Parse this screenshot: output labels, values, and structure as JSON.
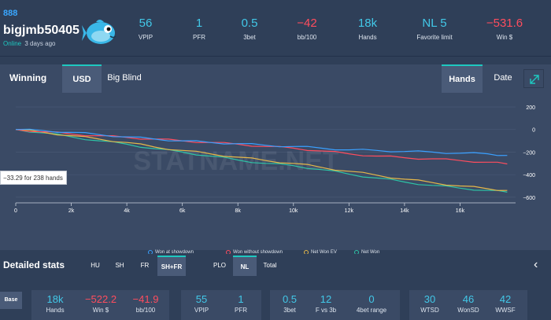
{
  "player": {
    "site": "888",
    "name": "bigjmb50405",
    "status": "Online",
    "last_seen": "3 days ago"
  },
  "header_stats": [
    {
      "value": "56",
      "label": "VPIP"
    },
    {
      "value": "1",
      "label": "PFR"
    },
    {
      "value": "0.5",
      "label": "3bet"
    },
    {
      "value": "−42",
      "label": "bb/100",
      "negative": true
    },
    {
      "value": "18k",
      "label": "Hands"
    },
    {
      "value": "NL 5",
      "label": "Favorite limit"
    },
    {
      "value": "−531.6",
      "label": "Win $",
      "negative": true
    }
  ],
  "chart_toolbar": {
    "title": "Winning",
    "tab_usd": "USD",
    "tab_bb": "Big Blind",
    "tab_hands": "Hands",
    "tab_date": "Date"
  },
  "chart_data": {
    "type": "line",
    "watermark": "STATNAME.NET",
    "tooltip": "−33.29 for 238 hands",
    "x_ticks": [
      "0",
      "2k",
      "4k",
      "6k",
      "8k",
      "10k",
      "12k",
      "14k",
      "16k"
    ],
    "y_ticks": [
      "200",
      "0",
      "−200",
      "−400",
      "−600"
    ],
    "xlim": [
      0,
      18000
    ],
    "ylim": [
      -650,
      270
    ],
    "x": [
      0,
      1000,
      2000,
      3000,
      4000,
      5000,
      6000,
      7000,
      8000,
      9000,
      10000,
      11000,
      12000,
      13000,
      14000,
      15000,
      16000,
      17000,
      17700
    ],
    "series": [
      {
        "name": "Won at showdown",
        "color": "#3aa0ff",
        "values": [
          0,
          -10,
          -25,
          -45,
          -65,
          -85,
          -100,
          -115,
          -125,
          -140,
          -150,
          -165,
          -180,
          -185,
          -195,
          -200,
          -210,
          -215,
          -230
        ]
      },
      {
        "name": "Won without showdown",
        "color": "#ff4d5e",
        "values": [
          0,
          -20,
          -40,
          -55,
          -70,
          -85,
          -100,
          -115,
          -130,
          -150,
          -165,
          -190,
          -215,
          -235,
          -250,
          -260,
          -275,
          -290,
          -305
        ]
      },
      {
        "name": "Net Won EV",
        "color": "#e6b84a",
        "values": [
          0,
          -25,
          -55,
          -85,
          -115,
          -155,
          -185,
          -215,
          -245,
          -275,
          -300,
          -335,
          -370,
          -405,
          -440,
          -470,
          -500,
          -525,
          -540
        ]
      },
      {
        "name": "Net Won",
        "color": "#2ec4a6",
        "values": [
          0,
          -30,
          -65,
          -100,
          -130,
          -170,
          -200,
          -235,
          -270,
          -300,
          -320,
          -355,
          -395,
          -430,
          -465,
          -495,
          -520,
          -540,
          -555
        ]
      }
    ]
  },
  "detailed_stats": {
    "title": "Detailed stats",
    "tabs": [
      "HU",
      "SH",
      "FR",
      "SH+FR",
      "PLO",
      "NL",
      "Total"
    ],
    "active_tabs": [
      "SH+FR",
      "NL"
    ],
    "row_label": "Base",
    "groups": [
      [
        {
          "value": "18k",
          "label": "Hands"
        },
        {
          "value": "−522.2",
          "label": "Win $",
          "negative": true
        },
        {
          "value": "−41.9",
          "label": "bb/100",
          "negative": true
        }
      ],
      [
        {
          "value": "55",
          "label": "VPIP"
        },
        {
          "value": "1",
          "label": "PFR"
        }
      ],
      [
        {
          "value": "0.5",
          "label": "3bet"
        },
        {
          "value": "12",
          "label": "F vs 3b"
        },
        {
          "value": "0",
          "label": "4bet range"
        }
      ],
      [
        {
          "value": "30",
          "label": "WTSD"
        },
        {
          "value": "46",
          "label": "WonSD"
        },
        {
          "value": "42",
          "label": "WWSF"
        }
      ]
    ]
  }
}
